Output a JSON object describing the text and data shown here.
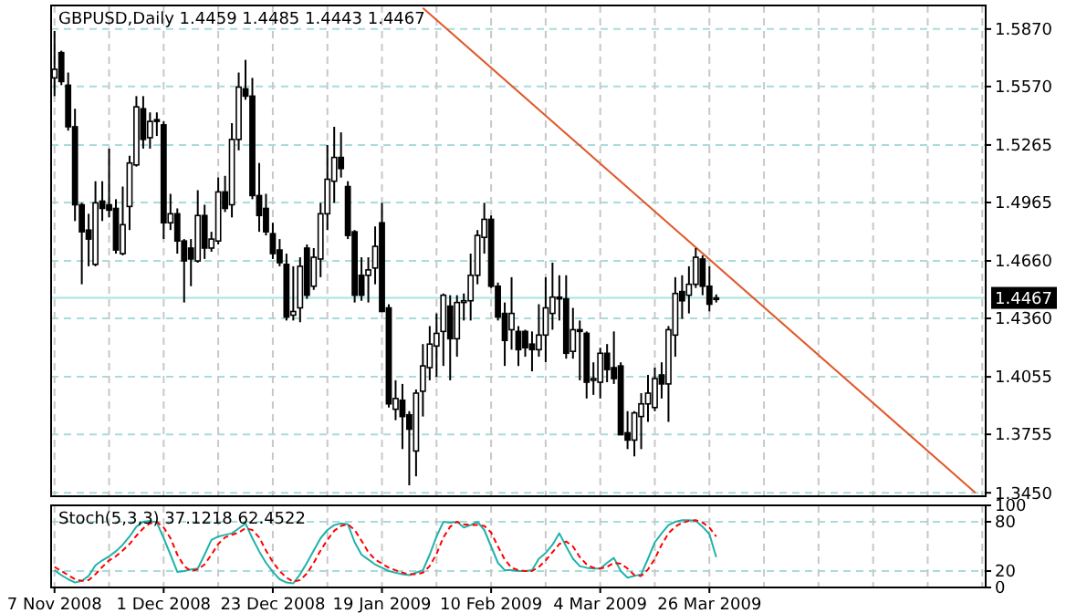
{
  "chart_data": [
    {
      "type": "candlestick",
      "title": "GBPUSD,Daily  1.4459 1.4485 1.4443 1.4467",
      "color": "#000000",
      "categories": [
        null,
        null,
        null,
        null,
        null,
        null,
        null,
        null,
        null,
        null,
        null,
        null,
        null,
        null,
        null,
        null,
        null,
        null,
        null,
        null,
        null,
        null,
        null,
        null,
        null,
        null,
        null,
        null,
        null,
        null,
        null,
        null,
        null,
        null,
        null,
        null,
        null,
        null,
        null,
        null,
        null,
        null,
        null,
        null,
        null,
        null,
        null,
        null,
        null,
        null,
        null,
        null,
        null,
        null,
        null,
        null,
        null,
        null,
        null,
        null,
        null,
        null,
        null,
        null,
        null,
        null,
        null,
        null,
        null,
        null,
        null,
        null,
        null,
        null,
        null,
        null,
        null,
        null,
        null,
        null,
        null,
        null,
        null,
        null,
        null,
        null,
        null,
        null,
        null,
        null,
        null,
        null,
        null,
        null,
        null,
        null,
        null,
        null,
        null,
        null,
        null,
        null,
        null,
        null,
        null,
        null,
        null,
        null,
        null,
        null,
        null,
        null,
        null,
        null,
        null,
        null,
        null,
        null,
        null,
        null,
        null,
        null,
        null,
        null,
        null,
        null,
        null,
        null,
        null,
        null,
        null,
        null,
        null,
        null,
        null,
        null,
        null
      ],
      "ohlc": [
        [
          1.5615,
          1.586,
          1.552,
          1.566
        ],
        [
          1.5747,
          1.5757,
          1.5577,
          1.5596
        ],
        [
          1.5577,
          1.5643,
          1.534,
          1.536
        ],
        [
          1.536,
          1.5454,
          1.4868,
          1.4953
        ],
        [
          1.4953,
          1.4963,
          1.4538,
          1.4812
        ],
        [
          1.4821,
          1.4906,
          1.4632,
          1.4774
        ],
        [
          1.4642,
          1.5076,
          1.4632,
          1.4963
        ],
        [
          1.4972,
          1.5076,
          1.4868,
          1.4934
        ],
        [
          1.4953,
          1.5246,
          1.4887,
          1.4925
        ],
        [
          1.4934,
          1.4982,
          1.4698,
          1.4717
        ],
        [
          1.4698,
          1.5048,
          1.4689,
          1.4849
        ],
        [
          1.4944,
          1.5209,
          1.4821,
          1.5171
        ],
        [
          1.5161,
          1.552,
          1.5152,
          1.5464
        ],
        [
          1.5454,
          1.552,
          1.5246,
          1.5294
        ],
        [
          1.5303,
          1.5435,
          1.5246,
          1.5388
        ],
        [
          1.5397,
          1.5435,
          1.5312,
          1.5388
        ],
        [
          1.537,
          1.5388,
          1.4774,
          1.4859
        ],
        [
          1.4859,
          1.501,
          1.4821,
          1.4906
        ],
        [
          1.4906,
          1.4934,
          1.4698,
          1.4764
        ],
        [
          1.4764,
          1.4774,
          1.4443,
          1.466
        ],
        [
          1.4727,
          1.4774,
          1.4528,
          1.467
        ],
        [
          1.466,
          1.5029,
          1.4651,
          1.4897
        ],
        [
          1.4897,
          1.4953,
          1.467,
          1.4727
        ],
        [
          1.4727,
          1.4812,
          1.4708,
          1.4774
        ],
        [
          1.4764,
          1.5095,
          1.4746,
          1.502
        ],
        [
          1.502,
          1.5104,
          1.4915,
          1.4934
        ],
        [
          1.4953,
          1.5379,
          1.4887,
          1.5294
        ],
        [
          1.5294,
          1.5643,
          1.5237,
          1.5567
        ],
        [
          1.5558,
          1.5709,
          1.5501,
          1.552
        ],
        [
          1.552,
          1.5615,
          1.4982,
          1.5001
        ],
        [
          1.5001,
          1.5171,
          1.4812,
          1.4897
        ],
        [
          1.4934,
          1.501,
          1.4793,
          1.4812
        ],
        [
          1.4802,
          1.4859,
          1.467,
          1.4698
        ],
        [
          1.4717,
          1.4774,
          1.4632,
          1.4651
        ],
        [
          1.4642,
          1.4698,
          1.4349,
          1.4367
        ],
        [
          1.4377,
          1.4632,
          1.4349,
          1.4396
        ],
        [
          1.4415,
          1.4679,
          1.434,
          1.4632
        ],
        [
          1.4727,
          1.4746,
          1.4462,
          1.4481
        ],
        [
          1.4528,
          1.4727,
          1.4509,
          1.4679
        ],
        [
          1.467,
          1.4963,
          1.4575,
          1.4906
        ],
        [
          1.4906,
          1.5265,
          1.4821,
          1.5086
        ],
        [
          1.5076,
          1.536,
          1.4963,
          1.52
        ],
        [
          1.52,
          1.5331,
          1.5095,
          1.5142
        ],
        [
          1.5048,
          1.5076,
          1.4774,
          1.4793
        ],
        [
          1.4812,
          1.4821,
          1.4443,
          1.4481
        ],
        [
          1.4585,
          1.4679,
          1.4452,
          1.4481
        ],
        [
          1.4585,
          1.4679,
          1.4443,
          1.4613
        ],
        [
          1.4623,
          1.484,
          1.4538,
          1.4736
        ],
        [
          1.4859,
          1.4963,
          1.4396,
          1.4396
        ],
        [
          1.4415,
          1.4434,
          1.3895,
          1.3914
        ],
        [
          1.3886,
          1.4037,
          1.3829,
          1.3942
        ],
        [
          1.3933,
          1.4018,
          1.3678,
          1.3848
        ],
        [
          1.3857,
          1.3876,
          1.3489,
          1.3782
        ],
        [
          1.3668,
          1.3989,
          1.3536,
          1.397
        ],
        [
          1.398,
          1.4226,
          1.3848,
          1.4112
        ],
        [
          1.4103,
          1.432,
          1.4037,
          1.4226
        ],
        [
          1.4216,
          1.4386,
          1.4055,
          1.4282
        ],
        [
          1.4292,
          1.449,
          1.4112,
          1.4481
        ],
        [
          1.4424,
          1.4481,
          1.4037,
          1.4254
        ],
        [
          1.4254,
          1.4481,
          1.416,
          1.4443
        ],
        [
          1.4443,
          1.449,
          1.4349,
          1.4452
        ],
        [
          1.4452,
          1.4698,
          1.4349,
          1.4585
        ],
        [
          1.4585,
          1.4821,
          1.4538,
          1.4793
        ],
        [
          1.4783,
          1.4963,
          1.4698,
          1.4877
        ],
        [
          1.4877,
          1.4897,
          1.4519,
          1.4528
        ],
        [
          1.4528,
          1.4547,
          1.4349,
          1.4367
        ],
        [
          1.4386,
          1.4443,
          1.4112,
          1.4245
        ],
        [
          1.4301,
          1.4575,
          1.4197,
          1.4386
        ],
        [
          1.4292,
          1.432,
          1.4112,
          1.4197
        ],
        [
          1.4292,
          1.4301,
          1.416,
          1.4207
        ],
        [
          1.4226,
          1.4292,
          1.4084,
          1.4197
        ],
        [
          1.4197,
          1.4434,
          1.416,
          1.4273
        ],
        [
          1.4273,
          1.4575,
          1.4131,
          1.4415
        ],
        [
          1.4386,
          1.4651,
          1.4301,
          1.4471
        ],
        [
          1.4471,
          1.4585,
          1.4349,
          1.4462
        ],
        [
          1.4462,
          1.4585,
          1.415,
          1.4178
        ],
        [
          1.4188,
          1.4415,
          1.415,
          1.4301
        ],
        [
          1.4301,
          1.4349,
          1.4037,
          1.4292
        ],
        [
          1.4282,
          1.4292,
          1.3942,
          1.4027
        ],
        [
          1.4037,
          1.4131,
          1.3961,
          1.4046
        ],
        [
          1.4027,
          1.4207,
          1.3942,
          1.4178
        ],
        [
          1.4178,
          1.4226,
          1.4027,
          1.4093
        ],
        [
          1.4103,
          1.4292,
          1.4018,
          1.4046
        ],
        [
          1.4112,
          1.4131,
          1.3753,
          1.3753
        ],
        [
          1.3763,
          1.3876,
          1.3678,
          1.3725
        ],
        [
          1.3725,
          1.3876,
          1.364,
          1.3867
        ],
        [
          1.3848,
          1.397,
          1.3678,
          1.3914
        ],
        [
          1.3914,
          1.4065,
          1.382,
          1.397
        ],
        [
          1.3895,
          1.4103,
          1.3876,
          1.4046
        ],
        [
          1.4065,
          1.4131,
          1.3942,
          1.4018
        ],
        [
          1.4018,
          1.432,
          1.382,
          1.4301
        ],
        [
          1.4273,
          1.4575,
          1.416,
          1.449
        ],
        [
          1.45,
          1.4585,
          1.4358,
          1.4452
        ],
        [
          1.4481,
          1.4632,
          1.4386,
          1.4538
        ],
        [
          1.4538,
          1.4727,
          1.4519,
          1.4679
        ],
        [
          1.467,
          1.4689,
          1.4481,
          1.4528
        ],
        [
          1.4528,
          1.4632,
          1.4396,
          1.4434
        ],
        [
          1.4459,
          1.4485,
          1.4443,
          1.4467
        ],
        null,
        null,
        null,
        null,
        null,
        null,
        null,
        null,
        null,
        null,
        null,
        null,
        null,
        null,
        null,
        null,
        null,
        null,
        null,
        null,
        null,
        null,
        null,
        null,
        null,
        null,
        null,
        null,
        null,
        null,
        null,
        null,
        null,
        null,
        null,
        null,
        null,
        null,
        null
      ],
      "series": [
        {
          "type": "line",
          "color": "#e0582a",
          "values": [
            null,
            null,
            null,
            null,
            null,
            null,
            null,
            null,
            null,
            null,
            null,
            null,
            null,
            null,
            null,
            null,
            null,
            null,
            null,
            null,
            null,
            null,
            null,
            null,
            null,
            null,
            null,
            null,
            null,
            null,
            null,
            null,
            null,
            null,
            null,
            null,
            null,
            null,
            null,
            null,
            null,
            null,
            null,
            null,
            null,
            null,
            null,
            null,
            null,
            null,
            null,
            null,
            null,
            null,
            1.598,
            null,
            null,
            null,
            null,
            null,
            null,
            null,
            null,
            null,
            null,
            null,
            null,
            null,
            null,
            null,
            null,
            null,
            null,
            null,
            null,
            null,
            null,
            null,
            null,
            null,
            null,
            null,
            null,
            null,
            null,
            null,
            null,
            null,
            null,
            null,
            null,
            null,
            null,
            null,
            null,
            null,
            null,
            null,
            null,
            null,
            null,
            null,
            null,
            null,
            null,
            null,
            null,
            null,
            null,
            null,
            null,
            null,
            null,
            null,
            null,
            null,
            null,
            null,
            null,
            null,
            null,
            null,
            null,
            null,
            null,
            null,
            null,
            null,
            null,
            null,
            null,
            null,
            null,
            null,
            null,
            1.345,
            null
          ]
        }
      ],
      "ylim": [
        1.3432,
        1.5993
      ],
      "yticks": [
        {
          "value": 1.587,
          "label": "1.5870"
        },
        {
          "value": 1.557,
          "label": "1.5570"
        },
        {
          "value": 1.5265,
          "label": "1.5265"
        },
        {
          "value": 1.4965,
          "label": "1.4965"
        },
        {
          "value": 1.466,
          "label": "1.4660"
        },
        {
          "value": 1.436,
          "label": "1.4360"
        },
        {
          "value": 1.4055,
          "label": "1.4055"
        },
        {
          "value": 1.3755,
          "label": "1.3755"
        },
        {
          "value": 1.345,
          "label": "1.3450"
        }
      ],
      "ref_lines": [
        {
          "axis": "y",
          "value": 1.4467,
          "label": "1.4467",
          "color": "#a8e4e4"
        }
      ],
      "grid": true,
      "tick_labels": "y"
    },
    {
      "type": "line",
      "title": "Stoch(5,3,3) 37.1218 62.4522",
      "categories": [
        "7 Nov 2008",
        null,
        null,
        null,
        null,
        null,
        null,
        null,
        null,
        null,
        null,
        null,
        null,
        null,
        null,
        null,
        "1 Dec 2008",
        null,
        null,
        null,
        null,
        null,
        null,
        null,
        null,
        null,
        null,
        null,
        null,
        null,
        null,
        null,
        "23 Dec 2008",
        null,
        null,
        null,
        null,
        null,
        null,
        null,
        null,
        null,
        null,
        null,
        null,
        null,
        null,
        null,
        "19 Jan 2009",
        null,
        null,
        null,
        null,
        null,
        null,
        null,
        null,
        null,
        null,
        null,
        null,
        null,
        null,
        null,
        "10 Feb 2009",
        null,
        null,
        null,
        null,
        null,
        null,
        null,
        null,
        null,
        null,
        null,
        null,
        null,
        null,
        null,
        "4 Mar 2009",
        null,
        null,
        null,
        null,
        null,
        null,
        null,
        null,
        null,
        null,
        null,
        null,
        null,
        null,
        null,
        "26 Mar 2009",
        null,
        null,
        null,
        null,
        null,
        null,
        null,
        null,
        null,
        null,
        null,
        null,
        null,
        null,
        null,
        null,
        null,
        null,
        null,
        null,
        null,
        null,
        null,
        null,
        null,
        null,
        null,
        null,
        null,
        null,
        null,
        null,
        null,
        null,
        null,
        null,
        null,
        null,
        null,
        null
      ],
      "series": [
        {
          "color": "#20b2aa",
          "line_style": "solid",
          "values": [
            21,
            15,
            10,
            6,
            8,
            14,
            27,
            33,
            38,
            44,
            52,
            62,
            74,
            80,
            81,
            79,
            60,
            40,
            19,
            20,
            22,
            23,
            40,
            58,
            62,
            64,
            66,
            72,
            78,
            60,
            44,
            30,
            19,
            10,
            6,
            5,
            16,
            30,
            45,
            60,
            70,
            76,
            78,
            77,
            55,
            40,
            34,
            28,
            24,
            20,
            18,
            16,
            15,
            18,
            21,
            40,
            62,
            80,
            79,
            80,
            73,
            76,
            80,
            70,
            50,
            30,
            21,
            21,
            20,
            20,
            21,
            35,
            42,
            52,
            66,
            50,
            35,
            26,
            24,
            23,
            23,
            30,
            36,
            20,
            12,
            14,
            16,
            35,
            55,
            66,
            76,
            80,
            82,
            82,
            81,
            74,
            65,
            37,
            null,
            null,
            null,
            null,
            null,
            null,
            null,
            null,
            null,
            null,
            null,
            null,
            null,
            null,
            null,
            null,
            null,
            null,
            null,
            null,
            null,
            null,
            null,
            null,
            null,
            null,
            null,
            null,
            null,
            null,
            null,
            null,
            null,
            null,
            null,
            null,
            null,
            null,
            null
          ]
        },
        {
          "color": "#ff0000",
          "line_style": "dashed",
          "values": [
            25,
            20,
            15,
            10,
            8,
            9,
            16,
            25,
            33,
            38,
            45,
            53,
            63,
            72,
            78,
            80,
            73,
            60,
            40,
            26,
            20,
            22,
            28,
            40,
            53,
            61,
            64,
            67,
            72,
            70,
            61,
            45,
            31,
            20,
            12,
            7,
            9,
            17,
            30,
            45,
            58,
            69,
            75,
            77,
            70,
            57,
            43,
            34,
            29,
            24,
            21,
            18,
            16,
            16,
            18,
            26,
            41,
            61,
            74,
            80,
            77,
            76,
            76,
            75,
            67,
            50,
            34,
            24,
            21,
            20,
            20,
            25,
            33,
            43,
            53,
            56,
            50,
            37,
            28,
            24,
            23,
            25,
            30,
            29,
            23,
            15,
            14,
            22,
            35,
            52,
            66,
            74,
            79,
            81,
            82,
            79,
            73,
            62,
            null,
            null,
            null,
            null,
            null,
            null,
            null,
            null,
            null,
            null,
            null,
            null,
            null,
            null,
            null,
            null,
            null,
            null,
            null,
            null,
            null,
            null,
            null,
            null,
            null,
            null,
            null,
            null,
            null,
            null,
            null,
            null,
            null,
            null,
            null,
            null,
            null,
            null,
            null
          ]
        }
      ],
      "ylim": [
        0,
        100
      ],
      "yticks": [
        100,
        80,
        20,
        0
      ],
      "grid": true
    }
  ]
}
